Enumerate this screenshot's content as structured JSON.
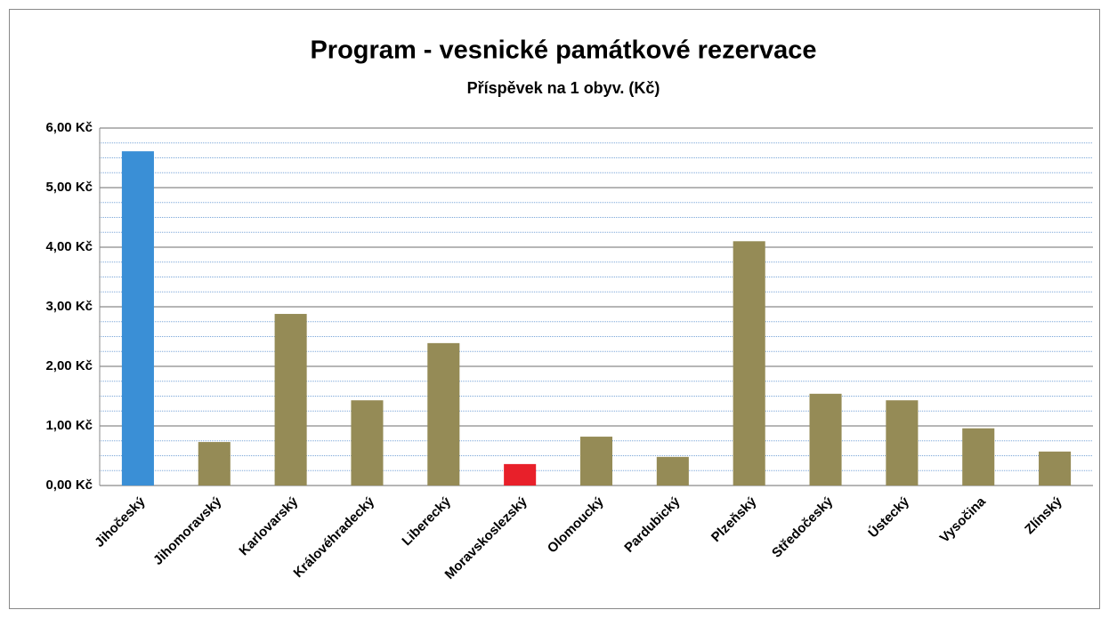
{
  "chart_data": {
    "type": "bar",
    "title": "Program - vesnické památkové rezervace",
    "subtitle": "Příspěvek na 1 obyv. (Kč)",
    "categories": [
      "Jihočeský",
      "Jihomoravský",
      "Karlovarský",
      "Královéhradecký",
      "Liberecký",
      "Moravskoslezský",
      "Olomoucký",
      "Pardubický",
      "Plzeňský",
      "Středočeský",
      "Ústecký",
      "Vysočina",
      "Zlínský"
    ],
    "values": [
      5.61,
      0.73,
      2.88,
      1.43,
      2.39,
      0.36,
      0.82,
      0.48,
      4.1,
      1.54,
      1.43,
      0.96,
      0.57
    ],
    "colors": [
      "#3a8fd6",
      "#958b56",
      "#958b56",
      "#958b56",
      "#958b56",
      "#e8202a",
      "#958b56",
      "#958b56",
      "#958b56",
      "#958b56",
      "#958b56",
      "#958b56",
      "#958b56"
    ],
    "ylim": [
      0,
      6
    ],
    "yticks": [
      {
        "value": 0,
        "label": "0,00 Kč"
      },
      {
        "value": 1,
        "label": "1,00 Kč"
      },
      {
        "value": 2,
        "label": "2,00 Kč"
      },
      {
        "value": 3,
        "label": "3,00 Kč"
      },
      {
        "value": 4,
        "label": "4,00 Kč"
      },
      {
        "value": 5,
        "label": "5,00 Kč"
      },
      {
        "value": 6,
        "label": "6,00 Kč"
      }
    ],
    "minor_yticks": [
      0.25,
      0.5,
      0.75,
      1.25,
      1.5,
      1.75,
      2.25,
      2.5,
      2.75,
      3.25,
      3.5,
      3.75,
      4.25,
      4.5,
      4.75,
      5.25,
      5.5,
      5.75
    ],
    "grid": true
  }
}
